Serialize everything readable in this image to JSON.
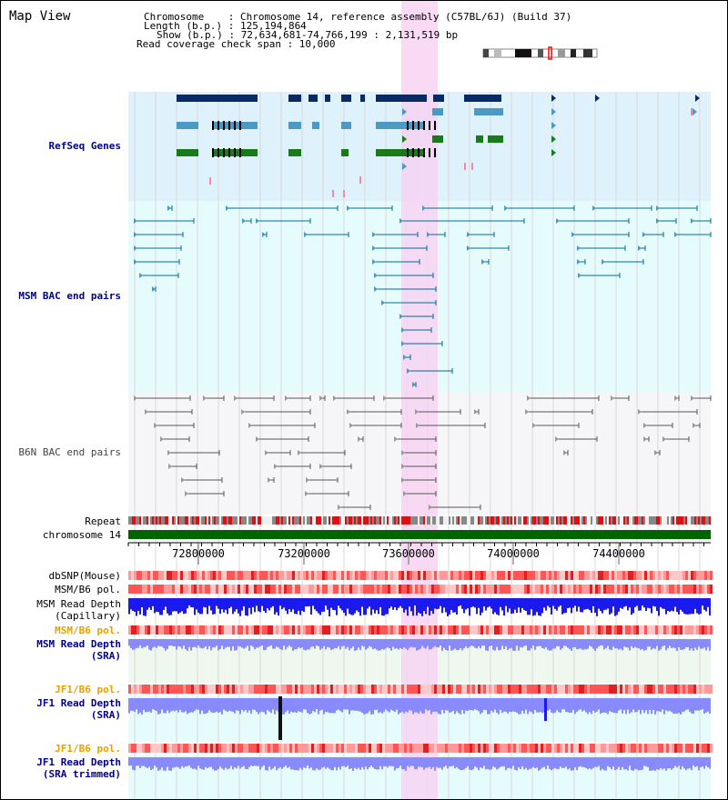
{
  "header": {
    "view_title": "Map View",
    "chromosome_line": "Chromosome    : Chromosome 14, reference assembly (C57BL/6J) (Build 37)",
    "length_line": "Length (b.p.) : 125,194,864",
    "show_line": "Show (b.p.) : 72,634,681-74,766,199 : 2,131,519 bp",
    "coverage_line": "Read coverage check span : 10,000"
  },
  "tracks": {
    "refseq": "RefSeq Genes",
    "msm_bac": "MSM BAC end pairs",
    "b6n_bac": "B6N BAC end pairs",
    "repeat": "Repeat",
    "chromosome": "chromosome 14",
    "dbsnp": "dbSNP(Mouse)",
    "msm_b6_pol": "MSM/B6 pol.",
    "msm_read_cap": "MSM Read Depth\n(Capillary)",
    "msm_b6_pol2": "MSM/B6 pol.",
    "msm_read_sra": "MSM Read Depth\n(SRA)",
    "jf1_b6_pol": "JF1/B6 pol.",
    "jf1_read_sra": "JF1 Read Depth\n(SRA)",
    "jf1_b6_pol2": "JF1/B6 pol.",
    "jf1_read_trim": "JF1 Read Depth\n(SRA trimmed)"
  },
  "axis": {
    "ticks": [
      "72800000",
      "73200000",
      "73600000",
      "74000000",
      "74400000"
    ]
  },
  "colors": {
    "refseq_bg": "#dff2fb",
    "msm_bg": "#e6fcfc",
    "b6n_bg": "#f6f6f9",
    "highlight": "#f7d4f3",
    "chromosome_bar": "#006400",
    "gene_dark": "#0a2a66",
    "gene_mid": "#4a9ac4",
    "gene_green": "#1a7a1a",
    "bac_line": "#006b8f",
    "b6n_line": "#555555",
    "depth_blue": "#1a1aee",
    "depth_light": "#8a8aff"
  }
}
